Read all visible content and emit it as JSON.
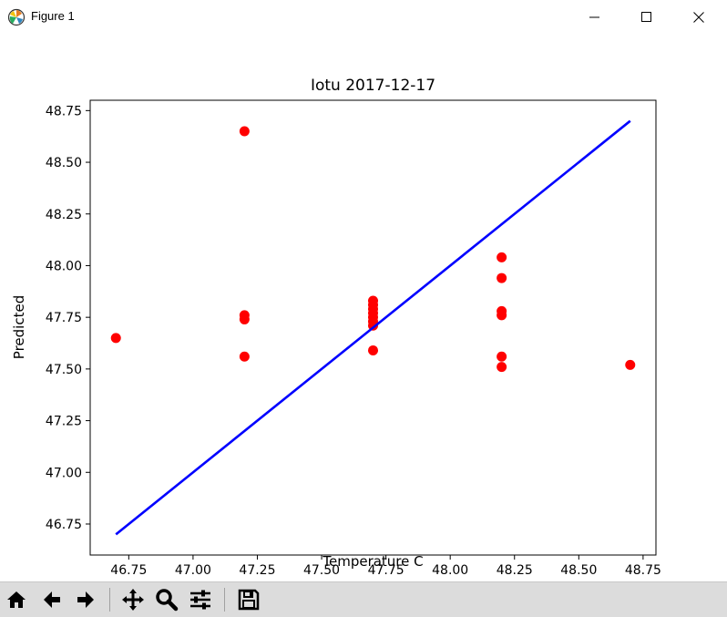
{
  "window": {
    "title": "Figure 1",
    "app_icon": "matplotlib-icon",
    "controls": [
      "minimize-icon",
      "maximize-icon",
      "close-icon"
    ]
  },
  "toolbar": {
    "buttons": [
      {
        "name": "home-button",
        "icon": "home-icon"
      },
      {
        "name": "back-button",
        "icon": "arrow-left-icon"
      },
      {
        "name": "forward-button",
        "icon": "arrow-right-icon"
      },
      {
        "name": "pan-button",
        "icon": "move-icon"
      },
      {
        "name": "zoom-button",
        "icon": "zoom-icon"
      },
      {
        "name": "configure-subplots-button",
        "icon": "sliders-icon"
      },
      {
        "name": "save-button",
        "icon": "save-icon"
      }
    ]
  },
  "chart_data": {
    "type": "scatter",
    "title": "Iotu 2017-12-17",
    "xlabel": "Temperature C",
    "ylabel": "Predicted",
    "xlim": [
      46.6,
      48.8
    ],
    "ylim": [
      46.6,
      48.8
    ],
    "xticks": [
      "46.75",
      "47.00",
      "47.25",
      "47.50",
      "47.75",
      "48.00",
      "48.25",
      "48.50",
      "48.75"
    ],
    "yticks": [
      "46.75",
      "47.00",
      "47.25",
      "47.50",
      "47.75",
      "48.00",
      "48.25",
      "48.50",
      "48.75"
    ],
    "grid": false,
    "points_color": "#ff0000",
    "line_color": "#0000ff",
    "line": {
      "x": [
        46.7,
        48.7
      ],
      "y": [
        46.7,
        48.7
      ]
    },
    "points": [
      {
        "x": 46.7,
        "y": 47.65
      },
      {
        "x": 47.2,
        "y": 48.65
      },
      {
        "x": 47.2,
        "y": 47.76
      },
      {
        "x": 47.2,
        "y": 47.74
      },
      {
        "x": 47.2,
        "y": 47.56
      },
      {
        "x": 47.7,
        "y": 47.83
      },
      {
        "x": 47.7,
        "y": 47.81
      },
      {
        "x": 47.7,
        "y": 47.79
      },
      {
        "x": 47.7,
        "y": 47.77
      },
      {
        "x": 47.7,
        "y": 47.75
      },
      {
        "x": 47.7,
        "y": 47.73
      },
      {
        "x": 47.7,
        "y": 47.71
      },
      {
        "x": 47.7,
        "y": 47.59
      },
      {
        "x": 48.2,
        "y": 48.04
      },
      {
        "x": 48.2,
        "y": 47.94
      },
      {
        "x": 48.2,
        "y": 47.78
      },
      {
        "x": 48.2,
        "y": 47.76
      },
      {
        "x": 48.2,
        "y": 47.56
      },
      {
        "x": 48.2,
        "y": 47.51
      },
      {
        "x": 48.7,
        "y": 47.52
      }
    ]
  }
}
